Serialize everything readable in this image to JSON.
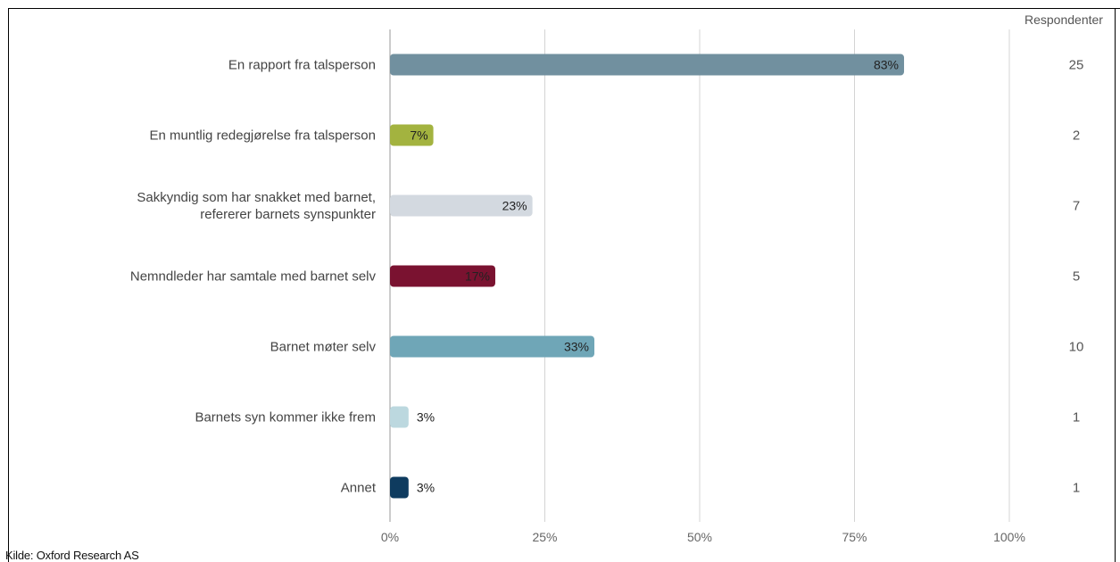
{
  "chart_data": {
    "type": "bar",
    "orientation": "horizontal",
    "categories": [
      [
        "En rapport fra talsperson"
      ],
      [
        "En muntlig redegjørelse fra talsperson"
      ],
      [
        "Sakkyndig som har snakket med barnet,",
        "refererer barnets synspunkter"
      ],
      [
        "Nemndleder har samtale med barnet selv"
      ],
      [
        "Barnet møter selv"
      ],
      [
        "Barnets syn kommer ikke frem"
      ],
      [
        "Annet"
      ]
    ],
    "values": [
      83,
      7,
      23,
      17,
      33,
      3,
      3
    ],
    "value_labels": [
      "83%",
      "7%",
      "23%",
      "17%",
      "33%",
      "3%",
      "3%"
    ],
    "bar_colors": [
      "#71909f",
      "#a3b33f",
      "#d3d9e0",
      "#7a1230",
      "#6fa6b7",
      "#bcd8df",
      "#0e3b5f"
    ],
    "respondents_header": "Respondenter",
    "respondents": [
      "25",
      "2",
      "7",
      "5",
      "10",
      "1",
      "1"
    ],
    "xlim": [
      0,
      100
    ],
    "x_ticks": [
      "0%",
      "25%",
      "50%",
      "75%",
      "100%"
    ],
    "grid": true
  },
  "source": "Kilde: Oxford Research AS"
}
